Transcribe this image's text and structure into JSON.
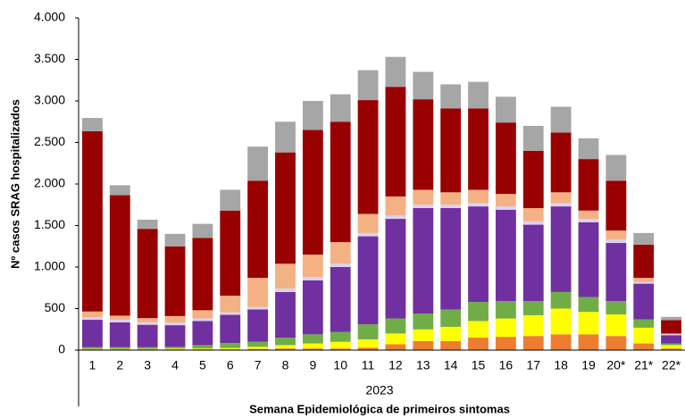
{
  "chart_data": {
    "type": "stacked_bar",
    "y_label": "Nº casos SRAG hospitalizados",
    "x_label": "Semana Epidemiológica de primeiros sintomas",
    "x_group_label": "2023",
    "categories": [
      "1",
      "2",
      "3",
      "4",
      "5",
      "6",
      "7",
      "8",
      "9",
      "10",
      "11",
      "12",
      "13",
      "14",
      "15",
      "16",
      "17",
      "18",
      "19",
      "20*",
      "21*",
      "22*"
    ],
    "ylim": [
      0,
      4000
    ],
    "yticks": [
      0,
      500,
      {
        "value": 1000,
        "label": "1.000"
      },
      {
        "value": 1500,
        "label": "1.500"
      },
      {
        "value": 2000,
        "label": "2.000"
      },
      {
        "value": 2500,
        "label": "2.500"
      },
      {
        "value": 3000,
        "label": "3.000"
      },
      {
        "value": 3500,
        "label": "3.500"
      },
      {
        "value": 4000,
        "label": "4.000"
      }
    ],
    "series": [
      {
        "color": "#ed7d31",
        "values": [
          10,
          10,
          10,
          10,
          10,
          10,
          15,
          20,
          20,
          20,
          30,
          70,
          110,
          110,
          150,
          160,
          170,
          190,
          190,
          170,
          80,
          20
        ]
      },
      {
        "color": "#ffff00",
        "values": [
          5,
          5,
          5,
          10,
          10,
          15,
          25,
          40,
          60,
          80,
          100,
          130,
          140,
          170,
          200,
          220,
          250,
          310,
          270,
          260,
          190,
          40
        ]
      },
      {
        "color": "#70ad47",
        "values": [
          20,
          20,
          20,
          20,
          40,
          60,
          60,
          90,
          110,
          120,
          180,
          180,
          190,
          210,
          230,
          210,
          170,
          200,
          180,
          160,
          100,
          20
        ]
      },
      {
        "color": "#7030a0",
        "values": [
          330,
          300,
          270,
          260,
          290,
          340,
          390,
          550,
          650,
          780,
          1060,
          1200,
          1270,
          1220,
          1150,
          1100,
          920,
          1030,
          900,
          700,
          430,
          100
        ]
      },
      {
        "color": "#d9d2f0",
        "values": [
          30,
          30,
          30,
          30,
          30,
          30,
          30,
          40,
          40,
          40,
          40,
          40,
          40,
          40,
          40,
          40,
          40,
          40,
          40,
          40,
          20,
          10
        ]
      },
      {
        "color": "#f4b183",
        "values": [
          70,
          50,
          50,
          80,
          100,
          200,
          350,
          300,
          270,
          260,
          230,
          230,
          180,
          150,
          160,
          150,
          160,
          130,
          100,
          110,
          50,
          10
        ]
      },
      {
        "color": "#990000",
        "values": [
          2170,
          1450,
          1075,
          840,
          870,
          1025,
          1170,
          1340,
          1500,
          1450,
          1370,
          1320,
          1090,
          1010,
          980,
          860,
          690,
          720,
          620,
          600,
          400,
          160
        ]
      },
      {
        "color": "#a6a6a6",
        "values": [
          160,
          120,
          110,
          150,
          170,
          250,
          410,
          370,
          350,
          330,
          360,
          360,
          330,
          290,
          320,
          310,
          300,
          310,
          250,
          310,
          140,
          40
        ]
      }
    ]
  }
}
